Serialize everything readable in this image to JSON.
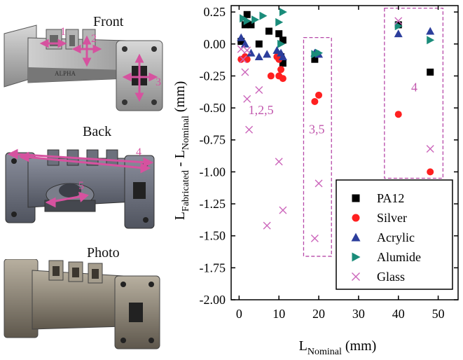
{
  "figure": {
    "views": [
      {
        "label": "Front",
        "callouts": [
          "1",
          "2",
          "3"
        ]
      },
      {
        "label": "Back",
        "callouts": [
          "4",
          "5"
        ]
      },
      {
        "label": "Photo",
        "callouts": []
      }
    ],
    "part_engraving": "ALPHA"
  },
  "chart_data": {
    "type": "scatter",
    "xlabel_main": "L",
    "xlabel_sub": "Nominal",
    "xlabel_unit": "(mm)",
    "ylabel_a": "L",
    "ylabel_a_sub": "Fabricated",
    "ylabel_mid": " - L",
    "ylabel_b_sub": "Nominal",
    "ylabel_unit": " (mm)",
    "xlim": [
      -2,
      55
    ],
    "ylim": [
      -2.0,
      0.3
    ],
    "xticks": [
      0,
      10,
      20,
      30,
      40,
      50
    ],
    "yticks": [
      0.25,
      0.0,
      -0.25,
      -0.5,
      -0.75,
      -1.0,
      -1.25,
      -1.5,
      -1.75,
      -2.0
    ],
    "ytick_labels": [
      "0.25",
      "0.00",
      "-0.25",
      "-0.50",
      "-0.75",
      "-1.00",
      "-1.25",
      "-1.50",
      "-1.75",
      "-2.00"
    ],
    "legend_position": "lower right",
    "series": [
      {
        "name": "PA12",
        "marker": "square",
        "color": "#000000",
        "points": [
          [
            0.5,
            0.02
          ],
          [
            1.5,
            0.15
          ],
          [
            2,
            0.23
          ],
          [
            3,
            0.15
          ],
          [
            5,
            0
          ],
          [
            7.5,
            0.1
          ],
          [
            10,
            0.08
          ],
          [
            10.5,
            -0.1
          ],
          [
            11,
            0.03
          ],
          [
            11,
            -0.15
          ],
          [
            19,
            -0.12
          ],
          [
            40,
            0.15
          ],
          [
            48,
            -0.22
          ]
        ]
      },
      {
        "name": "Silver",
        "marker": "circle",
        "color": "#ff2020",
        "points": [
          [
            0.5,
            -0.12
          ],
          [
            1.5,
            -0.1
          ],
          [
            2,
            -0.12
          ],
          [
            8,
            -0.25
          ],
          [
            9.5,
            -0.1
          ],
          [
            10,
            -0.12
          ],
          [
            10,
            -0.25
          ],
          [
            10.5,
            -0.2
          ],
          [
            11,
            -0.27
          ],
          [
            19,
            -0.45
          ],
          [
            20,
            -0.4
          ],
          [
            40,
            -0.55
          ],
          [
            48,
            -1.0
          ]
        ]
      },
      {
        "name": "Acrylic",
        "marker": "triangle-up",
        "color": "#2c3e9c",
        "points": [
          [
            0.5,
            0.05
          ],
          [
            1.5,
            0
          ],
          [
            3,
            -0.07
          ],
          [
            5,
            -0.1
          ],
          [
            7,
            -0.08
          ],
          [
            9.5,
            -0.05
          ],
          [
            10.5,
            -0.07
          ],
          [
            11,
            -0.1
          ],
          [
            19,
            -0.07
          ],
          [
            20,
            -0.08
          ],
          [
            40,
            0.08
          ],
          [
            48,
            0.1
          ]
        ]
      },
      {
        "name": "Alumide",
        "marker": "triangle-right",
        "color": "#1a8c7a",
        "points": [
          [
            1,
            0.2
          ],
          [
            2,
            0.18
          ],
          [
            4,
            0.19
          ],
          [
            6,
            0.22
          ],
          [
            10,
            0.17
          ],
          [
            10.5,
            0
          ],
          [
            11,
            0.25
          ],
          [
            19,
            -0.08
          ],
          [
            20,
            -0.07
          ],
          [
            40,
            0.14
          ],
          [
            48,
            0.03
          ]
        ]
      },
      {
        "name": "Glass",
        "marker": "x",
        "color": "#cc66bb",
        "points": [
          [
            0.5,
            -0.04
          ],
          [
            1,
            -0.12
          ],
          [
            2,
            -0.05
          ],
          [
            1.5,
            -0.22
          ],
          [
            2,
            -0.43
          ],
          [
            2.5,
            -0.67
          ],
          [
            5,
            -0.36
          ],
          [
            7,
            -1.42
          ],
          [
            10,
            -0.92
          ],
          [
            11,
            -1.3
          ],
          [
            19,
            -1.52
          ],
          [
            20,
            -1.09
          ],
          [
            40,
            0.18
          ],
          [
            48,
            -0.82
          ]
        ]
      }
    ],
    "annotations": [
      {
        "label": "1,2,5",
        "x": 5.5,
        "y": -0.55
      },
      {
        "label": "3,5",
        "x": 19.5,
        "y": -0.7
      },
      {
        "label": "4",
        "x": 44,
        "y": -0.37
      }
    ],
    "boxes": [
      {
        "x0": 16.2,
        "x1": 23.2,
        "y0": -1.66,
        "y1": 0.05
      },
      {
        "x0": 36.5,
        "x1": 51.2,
        "y0": -1.05,
        "y1": 0.28
      }
    ]
  }
}
